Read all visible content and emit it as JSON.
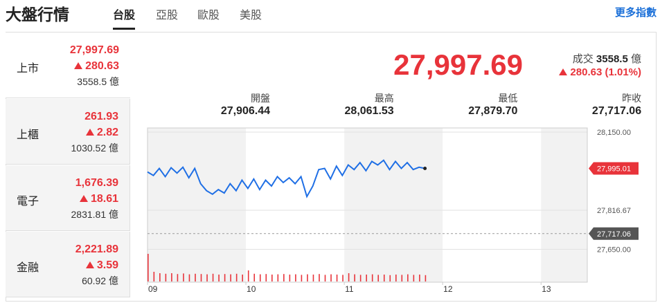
{
  "header": {
    "title": "大盤行情",
    "tabs": [
      "台股",
      "亞股",
      "歐股",
      "美股"
    ],
    "more_link": "更多指數"
  },
  "sidebar": [
    {
      "name": "上市",
      "price": "27,997.69",
      "change": "280.63",
      "volume": "3558.5 億"
    },
    {
      "name": "上櫃",
      "price": "261.93",
      "change": "2.82",
      "volume": "1030.52 億"
    },
    {
      "name": "電子",
      "price": "1,676.39",
      "change": "18.61",
      "volume": "2831.81 億"
    },
    {
      "name": "金融",
      "price": "2,221.89",
      "change": "3.59",
      "volume": "60.92 億"
    }
  ],
  "quote": {
    "price": "27,997.69",
    "volume_label": "成交",
    "volume": "3558.5",
    "volume_unit": "億",
    "change": "280.63 (1.01%)"
  },
  "stats": [
    {
      "label": "開盤",
      "value": "27,906.44"
    },
    {
      "label": "最高",
      "value": "28,061.53"
    },
    {
      "label": "最低",
      "value": "27,879.70"
    },
    {
      "label": "昨收",
      "value": "27,717.06"
    }
  ],
  "chart_data": {
    "type": "line",
    "color": "#1f6fe5",
    "volume_color": "#e8333a",
    "x": [
      9.0,
      9.06,
      9.12,
      9.18,
      9.24,
      9.3,
      9.36,
      9.42,
      9.48,
      9.54,
      9.6,
      9.66,
      9.72,
      9.78,
      9.84,
      9.9,
      9.96,
      10.02,
      10.08,
      10.14,
      10.2,
      10.26,
      10.32,
      10.38,
      10.44,
      10.5,
      10.56,
      10.62,
      10.68,
      10.74,
      10.8,
      10.86,
      10.92,
      10.98,
      11.04,
      11.1,
      11.16,
      11.22,
      11.28,
      11.34,
      11.4,
      11.46,
      11.52,
      11.58,
      11.64,
      11.7,
      11.76,
      11.82
    ],
    "values": [
      27980,
      27965,
      27995,
      27960,
      27998,
      27975,
      28000,
      27955,
      27995,
      27930,
      27900,
      27885,
      27905,
      27890,
      27930,
      27900,
      27945,
      27910,
      27950,
      27905,
      27945,
      27920,
      27960,
      27935,
      27955,
      27930,
      27960,
      27875,
      27920,
      27990,
      27995,
      27950,
      28005,
      27965,
      28010,
      27990,
      28020,
      27985,
      28025,
      28010,
      28030,
      27990,
      28025,
      27995,
      28020,
      27990,
      28000,
      27995.01
    ],
    "volume": [
      100,
      35,
      30,
      28,
      30,
      27,
      29,
      26,
      28,
      27,
      26,
      28,
      25,
      27,
      26,
      28,
      25,
      40,
      28,
      26,
      27,
      25,
      26,
      27,
      25,
      26,
      24,
      26,
      25,
      27,
      24,
      26,
      25,
      24,
      30,
      26,
      24,
      25,
      26,
      24,
      25,
      23,
      25,
      24,
      26,
      24,
      25,
      23
    ],
    "volume_lim": [
      0,
      100
    ],
    "xlim": [
      9,
      13.47
    ],
    "xticks": [
      {
        "value": 9,
        "label": "09"
      },
      {
        "value": 10,
        "label": "10"
      },
      {
        "value": 11,
        "label": "11"
      },
      {
        "value": 12,
        "label": "12"
      },
      {
        "value": 13,
        "label": "13"
      }
    ],
    "ylim": [
      27636.7,
      28167.7
    ],
    "yticks": [
      {
        "value": 28150,
        "label": "28,150.00"
      },
      {
        "value": 27816.67,
        "label": "27,816.67"
      },
      {
        "value": 27650,
        "label": "27,650.00"
      }
    ],
    "last_price": {
      "value": 27995.01,
      "label": "27,995.01"
    },
    "reference": {
      "value": 27717.06,
      "label": "27,717.06"
    }
  }
}
